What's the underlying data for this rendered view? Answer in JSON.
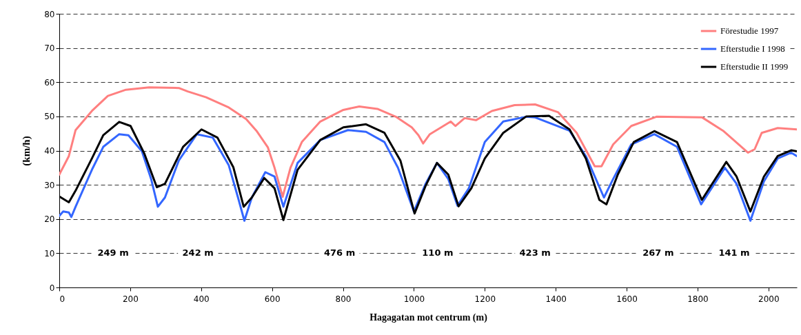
{
  "chart_data": {
    "type": "line",
    "xlabel": "Hagagatan mot centrum (m)",
    "ylabel": "(km/h)",
    "xlim": [
      0,
      2080
    ],
    "xticks": [
      0,
      200,
      400,
      600,
      800,
      1000,
      1200,
      1400,
      1600,
      1800,
      2000
    ],
    "ylim": [
      0,
      80
    ],
    "yticks": [
      0,
      10,
      20,
      30,
      40,
      50,
      60,
      70,
      80
    ],
    "grid": "y",
    "legend": "top right",
    "line_style": "solid",
    "series": [
      {
        "name": "Förestudie 1997",
        "color": "#ff7f7f",
        "x": [
          0,
          27,
          46,
          92,
          137,
          188,
          253,
          337,
          362,
          414,
          478,
          527,
          556,
          588,
          607,
          630,
          652,
          684,
          736,
          801,
          846,
          897,
          949,
          994,
          1013,
          1026,
          1045,
          1104,
          1117,
          1143,
          1175,
          1220,
          1284,
          1342,
          1407,
          1459,
          1510,
          1529,
          1562,
          1613,
          1684,
          1813,
          1872,
          1942,
          1961,
          1981,
          2026,
          2080
        ],
        "values": [
          33,
          38.4,
          46,
          51.6,
          56,
          57.8,
          58.5,
          58.3,
          57.3,
          55.6,
          52.6,
          49.2,
          45.8,
          41,
          35,
          26.5,
          35,
          42.5,
          48.5,
          51.9,
          52.9,
          52.2,
          49.9,
          46.8,
          44.5,
          42.1,
          44.8,
          48.5,
          47.2,
          49.5,
          48.9,
          51.6,
          53.3,
          53.5,
          51.2,
          45.2,
          35.4,
          35.4,
          41.8,
          47.2,
          49.9,
          49.7,
          45.8,
          39.4,
          40.4,
          45.2,
          46.6,
          46.2
        ]
      },
      {
        "name": "Efterstudie I 1998",
        "color": "#3366ff",
        "x": [
          0,
          11,
          27,
          34,
          46,
          92,
          124,
          169,
          195,
          233,
          259,
          278,
          298,
          337,
          388,
          433,
          478,
          504,
          522,
          543,
          581,
          607,
          632,
          672,
          736,
          814,
          865,
          917,
          955,
          1000,
          1033,
          1065,
          1097,
          1123,
          1155,
          1200,
          1252,
          1317,
          1342,
          1439,
          1485,
          1536,
          1562,
          1613,
          1678,
          1742,
          1810,
          1877,
          1910,
          1949,
          1987,
          2026,
          2064,
          2080
        ],
        "values": [
          20.9,
          22.2,
          21.9,
          20.6,
          23.6,
          34.4,
          41.1,
          44.8,
          44.5,
          39.8,
          31.7,
          23.6,
          26.3,
          37.1,
          44.8,
          43.8,
          35.7,
          26.3,
          19.5,
          26.3,
          33.7,
          32.4,
          23.6,
          36.4,
          43.1,
          46,
          45.5,
          42.5,
          35,
          22.2,
          30.3,
          36.4,
          31.7,
          23.9,
          29,
          42.5,
          48.5,
          49.9,
          49.7,
          45.8,
          38.4,
          26.3,
          31.7,
          41.8,
          44.8,
          41.1,
          24.3,
          35,
          30.3,
          19.5,
          31,
          37.7,
          39.4,
          38.4
        ]
      },
      {
        "name": "Efterstudie II 1999",
        "color": "#000000",
        "x": [
          0,
          27,
          46,
          92,
          124,
          169,
          201,
          240,
          275,
          298,
          349,
          401,
          446,
          491,
          520,
          543,
          578,
          607,
          632,
          672,
          736,
          801,
          865,
          917,
          962,
          1002,
          1033,
          1065,
          1097,
          1126,
          1162,
          1200,
          1252,
          1317,
          1381,
          1439,
          1485,
          1523,
          1543,
          1575,
          1620,
          1678,
          1742,
          1812,
          1881,
          1910,
          1949,
          1987,
          2026,
          2064,
          2080
        ],
        "values": [
          26.6,
          24.9,
          28.3,
          37.7,
          44.5,
          48.4,
          47.2,
          39.1,
          29.3,
          30.3,
          41.1,
          46.2,
          43.8,
          35.1,
          23.6,
          26.3,
          32,
          29,
          19.7,
          34.4,
          43.1,
          46.8,
          47.7,
          45.2,
          37.1,
          21.6,
          29.7,
          36.4,
          33,
          23.7,
          29,
          37.7,
          45.2,
          50,
          50.2,
          46.2,
          37.7,
          25.6,
          24.3,
          33,
          42.5,
          45.7,
          42.5,
          25.6,
          36.7,
          32.4,
          22.2,
          32.4,
          38.4,
          40.1,
          39.8
        ]
      }
    ],
    "annotations": [
      "249 m",
      "242 m",
      "476 m",
      "110 m",
      "423 m",
      "267 m",
      "141 m"
    ]
  }
}
